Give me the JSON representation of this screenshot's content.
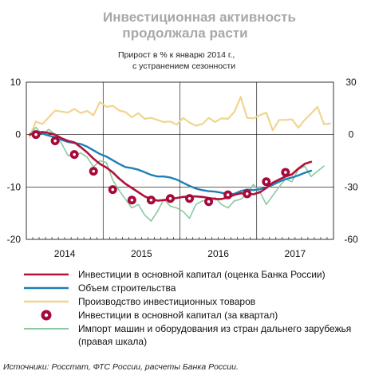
{
  "header": {
    "title_line1": "Инвестиционная активность",
    "title_line2": "продолжала расти",
    "subtitle_line1": "Прирост в % к январю 2014 г.,",
    "subtitle_line2": "с устранением сезонности"
  },
  "source": "Источники: Росстат, ФТС России, расчеты Банка России.",
  "colors": {
    "investment_line": "#b0123a",
    "construction": "#1e7fb8",
    "production": "#f1d58f",
    "quarterly_marker_fill": "#a6093a",
    "import": "#8cc9a0",
    "grid": "#000000"
  },
  "legend": [
    {
      "key": "investment_line",
      "label": "Инвестиции в основной капитал (оценка Банка России)"
    },
    {
      "key": "construction",
      "label": "Объем строительства"
    },
    {
      "key": "production",
      "label": "Производство инвестиционных товаров"
    },
    {
      "key": "quarterly",
      "label": "Инвестиции в основной капитал (за квартал)"
    },
    {
      "key": "import",
      "label": "Импорт машин и оборудования  из стран дальнего зарубежья (правая шкала)"
    }
  ],
  "chart_data": {
    "type": "line",
    "x_tick_labels": [
      "2014",
      "2015",
      "2016",
      "2017"
    ],
    "y_left": {
      "min": -20,
      "max": 10,
      "ticks": [
        "10",
        "0",
        "-10",
        "-20"
      ]
    },
    "y_right": {
      "min": -60,
      "max": 30,
      "ticks": [
        "30",
        "0",
        "-30",
        "-60"
      ]
    },
    "x_range": {
      "start": "2014-01",
      "end": "2017-12"
    },
    "month_labels": [
      "2014-01",
      "2014-02",
      "2014-03",
      "2014-04",
      "2014-05",
      "2014-06",
      "2014-07",
      "2014-08",
      "2014-09",
      "2014-10",
      "2014-11",
      "2014-12",
      "2015-01",
      "2015-02",
      "2015-03",
      "2015-04",
      "2015-05",
      "2015-06",
      "2015-07",
      "2015-08",
      "2015-09",
      "2015-10",
      "2015-11",
      "2015-12",
      "2016-01",
      "2016-02",
      "2016-03",
      "2016-04",
      "2016-05",
      "2016-06",
      "2016-07",
      "2016-08",
      "2016-09",
      "2016-10",
      "2016-11",
      "2016-12",
      "2017-01",
      "2017-02",
      "2017-03",
      "2017-04",
      "2017-05",
      "2017-06",
      "2017-07",
      "2017-08",
      "2017-09"
    ],
    "series": [
      {
        "key": "investment_line",
        "axis": "left",
        "values": [
          0,
          0.3,
          0.5,
          0.3,
          0,
          -0.7,
          -1.2,
          -1.5,
          -2.4,
          -3.4,
          -4.6,
          -5.6,
          -6.3,
          -7.2,
          -8.4,
          -9.4,
          -10.2,
          -11.0,
          -11.8,
          -12.3,
          -12.6,
          -12.5,
          -12.3,
          -12.1,
          -11.9,
          -11.8,
          -11.8,
          -11.9,
          -12.1,
          -12.3,
          -12.3,
          -12.0,
          -11.5,
          -11.2,
          -11.3,
          -11.4,
          -11.0,
          -10.2,
          -9.2,
          -8.6,
          -8.0,
          -7.6,
          -6.5,
          -5.6,
          -5.2
        ]
      },
      {
        "key": "construction",
        "axis": "left",
        "values": [
          0,
          0.3,
          0.2,
          -0.2,
          -0.5,
          -1.0,
          -1.4,
          -1.6,
          -1.8,
          -2.3,
          -3.0,
          -3.7,
          -4.2,
          -4.9,
          -5.6,
          -6.2,
          -6.4,
          -6.7,
          -7.2,
          -7.7,
          -8.0,
          -8.0,
          -8.2,
          -8.6,
          -9.2,
          -9.8,
          -10.3,
          -10.6,
          -10.8,
          -10.9,
          -11.1,
          -11.4,
          -11.3,
          -10.8,
          -10.5,
          -10.6,
          -10.4,
          -10.1,
          -9.6,
          -9.0,
          -8.5,
          -8.2,
          -7.8,
          -7.3,
          -6.9
        ]
      },
      {
        "key": "production",
        "axis": "left",
        "values": [
          -0.5,
          2.5,
          2.0,
          3.3,
          4.6,
          4.4,
          4.2,
          4.9,
          4.1,
          4.5,
          3.7,
          6.2,
          5.3,
          5.5,
          4.6,
          4.3,
          3.3,
          4.1,
          3.0,
          3.2,
          2.8,
          2.4,
          2.5,
          1.9,
          3.2,
          2.3,
          1.7,
          2.0,
          3.2,
          2.4,
          3.1,
          3.0,
          4.3,
          7.2,
          3.2,
          3.1,
          3.7,
          4.2,
          0.8,
          2.8,
          2.8,
          2.9,
          1.3,
          2.8,
          4.0,
          5.3,
          2.0,
          2.1
        ]
      },
      {
        "key": "import",
        "axis": "right",
        "values": [
          0,
          4.2,
          0,
          3.0,
          0,
          -5.0,
          -12.0,
          -12.0,
          -10.5,
          -13.0,
          -18.5,
          -15.0,
          -16.0,
          -26.0,
          -32.0,
          -37.0,
          -42.0,
          -40.0,
          -46.0,
          -49.5,
          -44.0,
          -37.0,
          -41.0,
          -42.0,
          -44.0,
          -48.0,
          -40.0,
          -38.0,
          -37.5,
          -36.0,
          -40.0,
          -42.0,
          -38.0,
          -37.0,
          -34.0,
          -28.5,
          -33.0,
          -40.0,
          -35.0,
          -30.0,
          -25.5,
          -27.0,
          -20.0,
          -18.0,
          -24.0,
          -21.0,
          -18.0
        ]
      },
      {
        "key": "quarterly",
        "axis": "left",
        "type": "scatter",
        "points": [
          {
            "x": "2014-02",
            "y": 0
          },
          {
            "x": "2014-05",
            "y": -1.2
          },
          {
            "x": "2014-08",
            "y": -3.8
          },
          {
            "x": "2014-11",
            "y": -7.0
          },
          {
            "x": "2015-02",
            "y": -10.5
          },
          {
            "x": "2015-05",
            "y": -12.5
          },
          {
            "x": "2015-08",
            "y": -12.5
          },
          {
            "x": "2015-11",
            "y": -12.2
          },
          {
            "x": "2016-02",
            "y": -12.2
          },
          {
            "x": "2016-05",
            "y": -12.8
          },
          {
            "x": "2016-08",
            "y": -11.5
          },
          {
            "x": "2016-11",
            "y": -11.3
          },
          {
            "x": "2017-02",
            "y": -9.0
          },
          {
            "x": "2017-05",
            "y": -7.2
          }
        ]
      }
    ]
  }
}
